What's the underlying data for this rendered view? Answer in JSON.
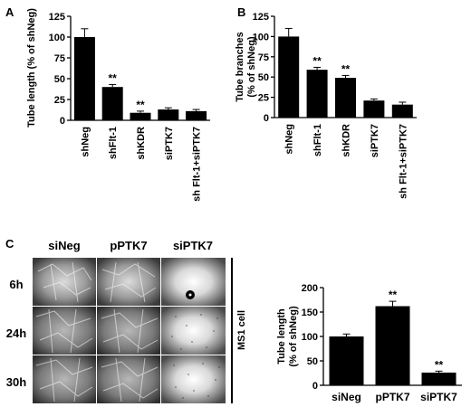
{
  "panels": {
    "a": "A",
    "b": "B",
    "c": "C"
  },
  "chart_data": [
    {
      "type": "bar",
      "panel": "A",
      "ylabel": "Tube length (% of shNeg)",
      "ylim": [
        0,
        125
      ],
      "yticks": [
        0,
        25,
        50,
        75,
        100,
        125
      ],
      "categories": [
        "shNeg",
        "shFlt-1",
        "shKDR",
        "siPTK7",
        "sh Flt-1+siPTK7"
      ],
      "values": [
        100,
        40,
        9,
        13,
        11
      ],
      "errors": [
        10,
        3,
        2,
        2,
        2
      ],
      "significance": [
        "",
        "**",
        "**",
        "",
        ""
      ]
    },
    {
      "type": "bar",
      "panel": "B",
      "ylabel": "Tube branches (% of shNeg)",
      "ylabel_lines": [
        "Tube branches",
        "(% of shNeg)"
      ],
      "ylim": [
        0,
        125
      ],
      "yticks": [
        0,
        25,
        50,
        75,
        100,
        125
      ],
      "categories": [
        "shNeg",
        "shFlt-1",
        "shKDR",
        "siPTK7",
        "sh Flt-1+siPTK7"
      ],
      "values": [
        100,
        59,
        49,
        21,
        16
      ],
      "errors": [
        10,
        3,
        3,
        2,
        3
      ],
      "significance": [
        "",
        "**",
        "**",
        "",
        ""
      ]
    },
    {
      "type": "bar",
      "panel": "C",
      "ylabel": "Tube length (% of shNeg)",
      "ylabel_lines": [
        "Tube length",
        "(% of shNeg)"
      ],
      "ylim": [
        0,
        200
      ],
      "yticks": [
        0,
        50,
        100,
        150,
        200
      ],
      "categories": [
        "siNeg",
        "pPTK7",
        "siPTK7"
      ],
      "values": [
        100,
        162,
        26
      ],
      "errors": [
        5,
        10,
        3
      ],
      "significance": [
        "",
        "**",
        "**"
      ]
    }
  ],
  "micrographs": {
    "columns": [
      "siNeg",
      "pPTK7",
      "siPTK7"
    ],
    "rows": [
      "6h",
      "24h",
      "30h"
    ],
    "side_label": "MS1 cell"
  }
}
